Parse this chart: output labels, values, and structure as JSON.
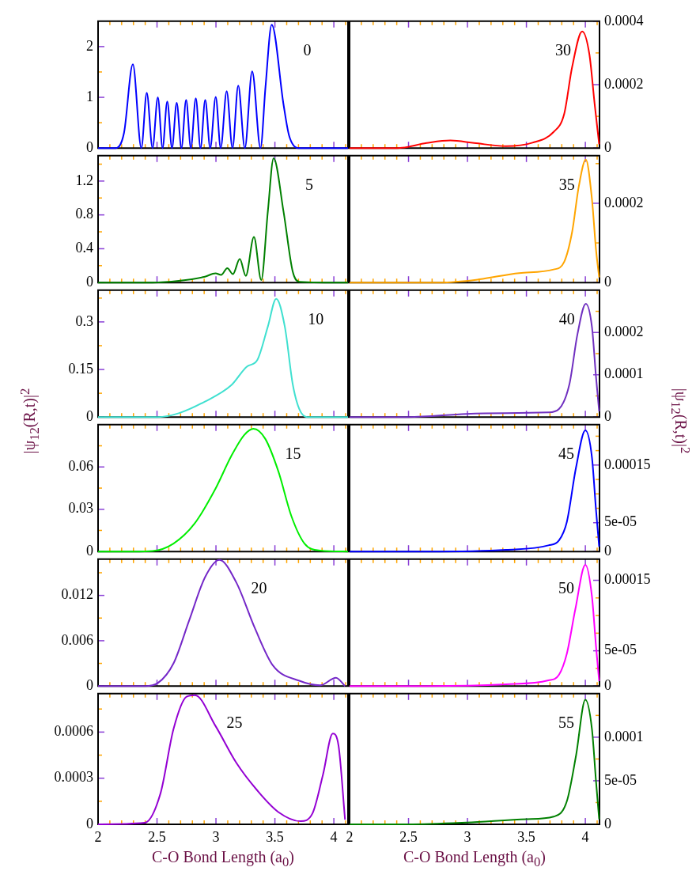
{
  "chart_data": [
    {
      "type": "line",
      "x": [
        2,
        2.15,
        2.22,
        2.295,
        2.367,
        2.413,
        2.462,
        2.507,
        2.547,
        2.587,
        2.627,
        2.667,
        2.707,
        2.747,
        2.787,
        2.829,
        2.869,
        2.909,
        2.951,
        2.998,
        3.04,
        3.091,
        3.14,
        3.189,
        3.245,
        3.307,
        3.378,
        3.42,
        3.473,
        3.573,
        3.62,
        3.7,
        4.12
      ],
      "series": [
        {
          "name": "0",
          "color": "#0000ff",
          "values": [
            0,
            0,
            0.3,
            1.65,
            0,
            1.09,
            0,
            1.0,
            0,
            0.92,
            0,
            0.89,
            0,
            0.95,
            0,
            0.98,
            0,
            0.95,
            0,
            1.01,
            0,
            1.12,
            0,
            1.23,
            0,
            1.51,
            0,
            1.2,
            2.43,
            0.86,
            0.25,
            0,
            0
          ]
        }
      ],
      "xlim": [
        2,
        4.12
      ],
      "xticks": [
        2,
        {
          "value": 2.1,
          "label": null
        },
        {
          "value": 2.2,
          "label": null
        },
        {
          "value": 2.3,
          "label": null
        },
        {
          "value": 2.4,
          "label": null
        },
        2.5,
        {
          "value": 2.6,
          "label": null
        },
        {
          "value": 2.7,
          "label": null
        },
        {
          "value": 2.8,
          "label": null
        },
        {
          "value": 2.9,
          "label": null
        },
        3,
        {
          "value": 3.1,
          "label": null
        },
        {
          "value": 3.2,
          "label": null
        },
        {
          "value": 3.3,
          "label": null
        },
        {
          "value": 3.4,
          "label": null
        },
        3.5,
        {
          "value": 3.6,
          "label": null
        },
        {
          "value": 3.7,
          "label": null
        },
        {
          "value": 3.8,
          "label": null
        },
        {
          "value": 3.9,
          "label": null
        },
        4,
        {
          "value": 4.1,
          "label": null
        }
      ],
      "ylim": [
        0,
        2.5
      ],
      "yticks": [
        0,
        {
          "value": 0.5,
          "label": null
        },
        1,
        {
          "value": 1.5,
          "label": null
        },
        2
      ],
      "tick_labels": "y"
    },
    {
      "type": "line",
      "x": [
        2,
        2.46,
        2.684,
        2.907,
        2.996,
        3.044,
        3.096,
        3.144,
        3.202,
        3.253,
        3.322,
        3.384,
        3.44,
        3.489,
        3.573,
        3.651,
        3.707,
        4.12
      ],
      "series": [
        {
          "name": "5",
          "color": "#008000",
          "values": [
            0,
            0,
            0.02,
            0.07,
            0.11,
            0.09,
            0.17,
            0.1,
            0.28,
            0.08,
            0.54,
            0.03,
            0.84,
            1.47,
            0.84,
            0.13,
            0.01,
            0
          ]
        }
      ],
      "xlim": [
        2,
        4.12
      ],
      "xticks": [
        2,
        {
          "value": 2.1,
          "label": null
        },
        {
          "value": 2.2,
          "label": null
        },
        {
          "value": 2.3,
          "label": null
        },
        {
          "value": 2.4,
          "label": null
        },
        2.5,
        {
          "value": 2.6,
          "label": null
        },
        {
          "value": 2.7,
          "label": null
        },
        {
          "value": 2.8,
          "label": null
        },
        {
          "value": 2.9,
          "label": null
        },
        3,
        {
          "value": 3.1,
          "label": null
        },
        {
          "value": 3.2,
          "label": null
        },
        {
          "value": 3.3,
          "label": null
        },
        {
          "value": 3.4,
          "label": null
        },
        3.5,
        {
          "value": 3.6,
          "label": null
        },
        {
          "value": 3.7,
          "label": null
        },
        {
          "value": 3.8,
          "label": null
        },
        {
          "value": 3.9,
          "label": null
        },
        4,
        {
          "value": 4.1,
          "label": null
        }
      ],
      "ylim": [
        0,
        1.5
      ],
      "yticks": [
        0,
        {
          "value": 0.2,
          "label": null
        },
        0.4,
        {
          "value": 0.6,
          "label": null
        },
        0.8,
        {
          "value": 1.0,
          "label": null
        },
        1.2,
        {
          "value": 1.4,
          "label": null
        }
      ],
      "tick_labels": "y"
    },
    {
      "type": "line",
      "x": [
        2,
        2.507,
        2.684,
        2.907,
        3.129,
        3.262,
        3.351,
        3.44,
        3.511,
        3.584,
        3.651,
        3.707,
        3.773,
        4.12
      ],
      "series": [
        {
          "name": "10",
          "color": "#40e0d0",
          "values": [
            0,
            0,
            0.012,
            0.049,
            0.1,
            0.159,
            0.18,
            0.285,
            0.373,
            0.285,
            0.104,
            0.025,
            0,
            0
          ]
        }
      ],
      "xlim": [
        2,
        4.12
      ],
      "xticks": [
        2,
        {
          "value": 2.1,
          "label": null
        },
        {
          "value": 2.2,
          "label": null
        },
        {
          "value": 2.3,
          "label": null
        },
        {
          "value": 2.4,
          "label": null
        },
        2.5,
        {
          "value": 2.6,
          "label": null
        },
        {
          "value": 2.7,
          "label": null
        },
        {
          "value": 2.8,
          "label": null
        },
        {
          "value": 2.9,
          "label": null
        },
        3,
        {
          "value": 3.1,
          "label": null
        },
        {
          "value": 3.2,
          "label": null
        },
        {
          "value": 3.3,
          "label": null
        },
        {
          "value": 3.4,
          "label": null
        },
        3.5,
        {
          "value": 3.6,
          "label": null
        },
        {
          "value": 3.7,
          "label": null
        },
        {
          "value": 3.8,
          "label": null
        },
        {
          "value": 3.9,
          "label": null
        },
        4,
        {
          "value": 4.1,
          "label": null
        }
      ],
      "ylim": [
        0,
        0.4
      ],
      "yticks": [
        0,
        {
          "value": 0.075,
          "label": null
        },
        0.15,
        {
          "value": 0.225,
          "label": null
        },
        0.3,
        {
          "value": 0.375,
          "label": null
        }
      ],
      "tick_labels": "y",
      "ylabel": "|ψ$_{12}$(R,t)|$^{2}$"
    },
    {
      "type": "line",
      "x": [
        2,
        2.3,
        2.462,
        2.64,
        2.818,
        2.996,
        3.129,
        3.24,
        3.318,
        3.418,
        3.529,
        3.64,
        3.751,
        3.884,
        4.12
      ],
      "series": [
        {
          "name": "15",
          "color": "#00ee00",
          "values": [
            0,
            0,
            0.0004,
            0.0057,
            0.0198,
            0.0446,
            0.0676,
            0.0827,
            0.0871,
            0.08,
            0.057,
            0.0251,
            0.0057,
            0.0007,
            0
          ]
        }
      ],
      "xlim": [
        2,
        4.12
      ],
      "xticks": [
        2,
        {
          "value": 2.1,
          "label": null
        },
        {
          "value": 2.2,
          "label": null
        },
        {
          "value": 2.3,
          "label": null
        },
        {
          "value": 2.4,
          "label": null
        },
        2.5,
        {
          "value": 2.6,
          "label": null
        },
        {
          "value": 2.7,
          "label": null
        },
        {
          "value": 2.8,
          "label": null
        },
        {
          "value": 2.9,
          "label": null
        },
        3,
        {
          "value": 3.1,
          "label": null
        },
        {
          "value": 3.2,
          "label": null
        },
        {
          "value": 3.3,
          "label": null
        },
        {
          "value": 3.4,
          "label": null
        },
        3.5,
        {
          "value": 3.6,
          "label": null
        },
        {
          "value": 3.7,
          "label": null
        },
        {
          "value": 3.8,
          "label": null
        },
        {
          "value": 3.9,
          "label": null
        },
        4,
        {
          "value": 4.1,
          "label": null
        }
      ],
      "ylim": [
        0,
        0.09
      ],
      "yticks": [
        0,
        {
          "value": 0.015,
          "label": null
        },
        0.03,
        {
          "value": 0.045,
          "label": null
        },
        0.06,
        {
          "value": 0.075,
          "label": null
        }
      ],
      "tick_labels": "y"
    },
    {
      "type": "line",
      "x": [
        2,
        2.396,
        2.507,
        2.64,
        2.773,
        2.907,
        3.029,
        3.173,
        3.329,
        3.484,
        3.707,
        3.884,
        4.018,
        4.095
      ],
      "series": [
        {
          "name": "20",
          "color": "#7428c8",
          "values": [
            0,
            0,
            0.0004,
            0.003,
            0.0087,
            0.0144,
            0.0167,
            0.0137,
            0.0077,
            0.0027,
            0.0007,
            0.0001,
            0.0011,
            0
          ]
        }
      ],
      "xlim": [
        2,
        4.12
      ],
      "xticks": [
        2,
        {
          "value": 2.1,
          "label": null
        },
        {
          "value": 2.2,
          "label": null
        },
        {
          "value": 2.3,
          "label": null
        },
        {
          "value": 2.4,
          "label": null
        },
        2.5,
        {
          "value": 2.6,
          "label": null
        },
        {
          "value": 2.7,
          "label": null
        },
        {
          "value": 2.8,
          "label": null
        },
        {
          "value": 2.9,
          "label": null
        },
        3,
        {
          "value": 3.1,
          "label": null
        },
        {
          "value": 3.2,
          "label": null
        },
        {
          "value": 3.3,
          "label": null
        },
        {
          "value": 3.4,
          "label": null
        },
        3.5,
        {
          "value": 3.6,
          "label": null
        },
        {
          "value": 3.7,
          "label": null
        },
        {
          "value": 3.8,
          "label": null
        },
        {
          "value": 3.9,
          "label": null
        },
        4,
        {
          "value": 4.1,
          "label": null
        }
      ],
      "ylim": [
        0,
        0.0168
      ],
      "yticks": [
        0,
        {
          "value": 0.003,
          "label": null
        },
        0.006,
        {
          "value": 0.009,
          "label": null
        },
        0.012,
        {
          "value": 0.015,
          "label": null
        }
      ],
      "tick_labels": "y"
    },
    {
      "type": "line",
      "x": [
        2,
        2.396,
        2.529,
        2.64,
        2.751,
        2.822,
        2.996,
        3.173,
        3.351,
        3.529,
        3.718,
        3.818,
        3.907,
        3.991,
        4.04,
        4.095
      ],
      "series": [
        {
          "name": "25",
          "color": "#9400d3",
          "values": [
            0,
            1e-05,
            0.0002,
            0.00062,
            0.00083,
            0.00084,
            0.00064,
            0.0004,
            0.00022,
            8e-05,
            2e-05,
            7e-05,
            0.00032,
            0.00059,
            0.00051,
            3e-05
          ]
        }
      ],
      "xlim": [
        2,
        4.12
      ],
      "xticks": [
        2,
        {
          "value": 2.1,
          "label": null
        },
        {
          "value": 2.2,
          "label": null
        },
        {
          "value": 2.3,
          "label": null
        },
        {
          "value": 2.4,
          "label": null
        },
        2.5,
        {
          "value": 2.6,
          "label": null
        },
        {
          "value": 2.7,
          "label": null
        },
        {
          "value": 2.8,
          "label": null
        },
        {
          "value": 2.9,
          "label": null
        },
        3,
        {
          "value": 3.1,
          "label": null
        },
        {
          "value": 3.2,
          "label": null
        },
        {
          "value": 3.3,
          "label": null
        },
        {
          "value": 3.4,
          "label": null
        },
        3.5,
        {
          "value": 3.6,
          "label": null
        },
        {
          "value": 3.7,
          "label": null
        },
        {
          "value": 3.8,
          "label": null
        },
        {
          "value": 3.9,
          "label": null
        },
        4,
        {
          "value": 4.1,
          "label": null
        }
      ],
      "ylim": [
        0,
        0.00085
      ],
      "yticks": [
        0,
        {
          "value": 0.00015,
          "label": null
        },
        0.0003,
        {
          "value": 0.00045,
          "label": null
        },
        0.0006,
        {
          "value": 0.00075,
          "label": null
        }
      ],
      "xlabel": "C-O Bond Length (a$_{0}$)"
    },
    {
      "type": "line",
      "x": [
        2,
        2.406,
        2.653,
        2.855,
        3.057,
        3.327,
        3.551,
        3.731,
        3.82,
        3.888,
        3.973,
        4.034,
        4.079,
        4.117
      ],
      "series": [
        {
          "name": "30",
          "color": "#ff0000",
          "values": [
            0,
            0,
            1.6e-05,
            2.4e-05,
            1.6e-05,
            6e-06,
            1.7e-05,
            5.1e-05,
            0.000107,
            0.000256,
            0.000368,
            0.000296,
            0.000138,
            1.2e-05
          ]
        }
      ],
      "xlim": [
        2,
        4.12
      ],
      "xticks": [
        2,
        {
          "value": 2.1,
          "label": null
        },
        {
          "value": 2.2,
          "label": null
        },
        {
          "value": 2.3,
          "label": null
        },
        {
          "value": 2.4,
          "label": null
        },
        2.5,
        {
          "value": 2.6,
          "label": null
        },
        {
          "value": 2.7,
          "label": null
        },
        {
          "value": 2.8,
          "label": null
        },
        {
          "value": 2.9,
          "label": null
        },
        3,
        {
          "value": 3.1,
          "label": null
        },
        {
          "value": 3.2,
          "label": null
        },
        {
          "value": 3.3,
          "label": null
        },
        {
          "value": 3.4,
          "label": null
        },
        3.5,
        {
          "value": 3.6,
          "label": null
        },
        {
          "value": 3.7,
          "label": null
        },
        {
          "value": 3.8,
          "label": null
        },
        {
          "value": 3.9,
          "label": null
        },
        4,
        {
          "value": 4.1,
          "label": null
        }
      ],
      "ylim": [
        0,
        0.0004
      ],
      "yticks": [
        0,
        {
          "value": 0.0001,
          "label": null
        },
        0.0002,
        {
          "value": 0.0003,
          "label": null
        },
        0.0004
      ],
      "tick_labels": "y"
    },
    {
      "type": "line",
      "x": [
        2,
        2.766,
        3.102,
        3.439,
        3.731,
        3.82,
        3.888,
        3.944,
        4.004,
        4.056,
        4.09,
        4.117
      ],
      "series": [
        {
          "name": "35",
          "color": "#ffa500",
          "values": [
            0,
            0,
            8.2e-06,
            2.4e-05,
            3.3e-05,
            5.2e-05,
            0.000128,
            0.000242,
            0.00031,
            0.00021,
            8.4e-05,
            1.3e-05
          ]
        }
      ],
      "xlim": [
        2,
        4.12
      ],
      "xticks": [
        2,
        {
          "value": 2.1,
          "label": null
        },
        {
          "value": 2.2,
          "label": null
        },
        {
          "value": 2.3,
          "label": null
        },
        {
          "value": 2.4,
          "label": null
        },
        2.5,
        {
          "value": 2.6,
          "label": null
        },
        {
          "value": 2.7,
          "label": null
        },
        {
          "value": 2.8,
          "label": null
        },
        {
          "value": 2.9,
          "label": null
        },
        3,
        {
          "value": 3.1,
          "label": null
        },
        {
          "value": 3.2,
          "label": null
        },
        {
          "value": 3.3,
          "label": null
        },
        {
          "value": 3.4,
          "label": null
        },
        3.5,
        {
          "value": 3.6,
          "label": null
        },
        {
          "value": 3.7,
          "label": null
        },
        {
          "value": 3.8,
          "label": null
        },
        {
          "value": 3.9,
          "label": null
        },
        4,
        {
          "value": 4.1,
          "label": null
        }
      ],
      "ylim": [
        0,
        0.00032
      ],
      "yticks": [
        0,
        {
          "value": 0.0001,
          "label": null
        },
        0.0002,
        {
          "value": 0.0003,
          "label": null
        }
      ],
      "tick_labels": "y"
    },
    {
      "type": "line",
      "x": [
        2,
        2.496,
        2.99,
        3.327,
        3.686,
        3.776,
        3.865,
        3.933,
        4.004,
        4.056,
        4.09,
        4.117
      ],
      "series": [
        {
          "name": "40",
          "color": "#7030c0",
          "values": [
            0,
            0,
            7.6e-06,
            9.4e-06,
            1.1e-05,
            1.9e-05,
            7.8e-05,
            0.000196,
            0.000268,
            0.000213,
            9.6e-05,
            1.35e-05
          ]
        }
      ],
      "xlim": [
        2,
        4.12
      ],
      "xticks": [
        2,
        {
          "value": 2.1,
          "label": null
        },
        {
          "value": 2.2,
          "label": null
        },
        {
          "value": 2.3,
          "label": null
        },
        {
          "value": 2.4,
          "label": null
        },
        2.5,
        {
          "value": 2.6,
          "label": null
        },
        {
          "value": 2.7,
          "label": null
        },
        {
          "value": 2.8,
          "label": null
        },
        {
          "value": 2.9,
          "label": null
        },
        3,
        {
          "value": 3.1,
          "label": null
        },
        {
          "value": 3.2,
          "label": null
        },
        {
          "value": 3.3,
          "label": null
        },
        {
          "value": 3.4,
          "label": null
        },
        3.5,
        {
          "value": 3.6,
          "label": null
        },
        {
          "value": 3.7,
          "label": null
        },
        {
          "value": 3.8,
          "label": null
        },
        {
          "value": 3.9,
          "label": null
        },
        4,
        {
          "value": 4.1,
          "label": null
        }
      ],
      "ylim": [
        0,
        0.0003
      ],
      "yticks": [
        0,
        {
          "value": 5e-05,
          "label": null
        },
        0.0001,
        {
          "value": 0.00015,
          "label": null
        },
        0.0002,
        {
          "value": 0.00025,
          "label": null
        }
      ],
      "tick_labels": "y",
      "ylabel": "|ψ$_{12}$(R,t)|$^{2}$"
    },
    {
      "type": "line",
      "x": [
        2,
        2.653,
        3.327,
        3.686,
        3.776,
        3.843,
        3.921,
        4.0,
        4.056,
        4.09,
        4.117
      ],
      "series": [
        {
          "name": "45",
          "color": "#0000ff",
          "values": [
            0,
            0,
            3e-06,
            1.07e-05,
            1.93e-05,
            5.15e-05,
            0.000146,
            0.00021,
            0.000163,
            7.3e-05,
            8.6e-06
          ]
        }
      ],
      "xlim": [
        2,
        4.12
      ],
      "xticks": [
        2,
        {
          "value": 2.1,
          "label": null
        },
        {
          "value": 2.2,
          "label": null
        },
        {
          "value": 2.3,
          "label": null
        },
        {
          "value": 2.4,
          "label": null
        },
        2.5,
        {
          "value": 2.6,
          "label": null
        },
        {
          "value": 2.7,
          "label": null
        },
        {
          "value": 2.8,
          "label": null
        },
        {
          "value": 2.9,
          "label": null
        },
        3,
        {
          "value": 3.1,
          "label": null
        },
        {
          "value": 3.2,
          "label": null
        },
        {
          "value": 3.3,
          "label": null
        },
        {
          "value": 3.4,
          "label": null
        },
        3.5,
        {
          "value": 3.6,
          "label": null
        },
        {
          "value": 3.7,
          "label": null
        },
        {
          "value": 3.8,
          "label": null
        },
        {
          "value": 3.9,
          "label": null
        },
        4,
        {
          "value": 4.1,
          "label": null
        }
      ],
      "ylim": [
        0,
        0.00022
      ],
      "yticks": [
        0,
        {
          "value": 2.5e-05,
          "label": null
        },
        {
          "value": 5e-05,
          "label": "5e-05"
        },
        {
          "value": 7.5e-05,
          "label": null
        },
        {
          "value": 0.0001,
          "label": null
        },
        {
          "value": 0.000125,
          "label": null
        },
        0.00015,
        {
          "value": 0.000175,
          "label": null
        },
        {
          "value": 0.0002,
          "label": null
        }
      ],
      "tick_labels": "y"
    },
    {
      "type": "line",
      "x": [
        2,
        2.653,
        3.327,
        3.686,
        3.776,
        3.843,
        3.915,
        4.0,
        4.056,
        4.09,
        4.117
      ],
      "series": [
        {
          "name": "50",
          "color": "#ff00ff",
          "values": [
            0,
            0,
            2.5e-06,
            8e-06,
            1.6e-05,
            4.6e-05,
            0.000109,
            0.000172,
            0.000127,
            5.7e-05,
            7e-06
          ]
        }
      ],
      "xlim": [
        2,
        4.12
      ],
      "xticks": [
        2,
        {
          "value": 2.1,
          "label": null
        },
        {
          "value": 2.2,
          "label": null
        },
        {
          "value": 2.3,
          "label": null
        },
        {
          "value": 2.4,
          "label": null
        },
        2.5,
        {
          "value": 2.6,
          "label": null
        },
        {
          "value": 2.7,
          "label": null
        },
        {
          "value": 2.8,
          "label": null
        },
        {
          "value": 2.9,
          "label": null
        },
        3,
        {
          "value": 3.1,
          "label": null
        },
        {
          "value": 3.2,
          "label": null
        },
        {
          "value": 3.3,
          "label": null
        },
        {
          "value": 3.4,
          "label": null
        },
        3.5,
        {
          "value": 3.6,
          "label": null
        },
        {
          "value": 3.7,
          "label": null
        },
        {
          "value": 3.8,
          "label": null
        },
        {
          "value": 3.9,
          "label": null
        },
        4,
        {
          "value": 4.1,
          "label": null
        }
      ],
      "ylim": [
        0,
        0.00018
      ],
      "yticks": [
        0,
        {
          "value": 2.5e-05,
          "label": null
        },
        {
          "value": 5e-05,
          "label": "5e-05"
        },
        {
          "value": 7.5e-05,
          "label": null
        },
        {
          "value": 0.0001,
          "label": null
        },
        {
          "value": 0.000125,
          "label": null
        },
        0.00015
      ],
      "tick_labels": "y"
    },
    {
      "type": "line",
      "x": [
        2,
        2.496,
        2.99,
        3.506,
        3.731,
        3.843,
        3.921,
        4.0,
        4.056,
        4.09,
        4.117
      ],
      "series": [
        {
          "name": "55",
          "color": "#008000",
          "values": [
            0,
            0,
            2e-06,
            5.9e-06,
            8.8e-06,
            2.65e-05,
            7.9e-05,
            0.000143,
            0.000109,
            5e-05,
            5.9e-06
          ]
        }
      ],
      "xlim": [
        2,
        4.12
      ],
      "xticks": [
        2,
        {
          "value": 2.1,
          "label": null
        },
        {
          "value": 2.2,
          "label": null
        },
        {
          "value": 2.3,
          "label": null
        },
        {
          "value": 2.4,
          "label": null
        },
        2.5,
        {
          "value": 2.6,
          "label": null
        },
        {
          "value": 2.7,
          "label": null
        },
        {
          "value": 2.8,
          "label": null
        },
        {
          "value": 2.9,
          "label": null
        },
        3,
        {
          "value": 3.1,
          "label": null
        },
        {
          "value": 3.2,
          "label": null
        },
        {
          "value": 3.3,
          "label": null
        },
        {
          "value": 3.4,
          "label": null
        },
        3.5,
        {
          "value": 3.6,
          "label": null
        },
        {
          "value": 3.7,
          "label": null
        },
        {
          "value": 3.8,
          "label": null
        },
        {
          "value": 3.9,
          "label": null
        },
        4,
        {
          "value": 4.1,
          "label": null
        }
      ],
      "ylim": [
        0,
        0.00015
      ],
      "yticks": [
        0,
        {
          "value": 2.5e-05,
          "label": null
        },
        {
          "value": 5e-05,
          "label": "5e-05"
        },
        {
          "value": 7.5e-05,
          "label": null
        },
        0.0001,
        {
          "value": 0.000125,
          "label": null
        }
      ],
      "xlabel": "C-O Bond Length (a$_{0}$)"
    }
  ]
}
